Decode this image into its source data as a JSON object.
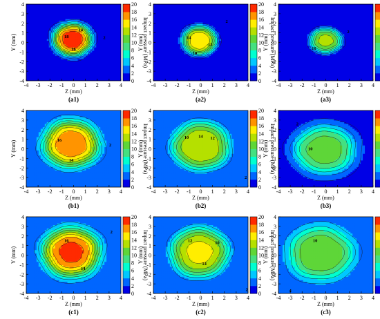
{
  "colors": {
    "scale": [
      "#0000e6",
      "#0066ff",
      "#00c8ff",
      "#00ffd0",
      "#44e080",
      "#5ed638",
      "#b5e000",
      "#ffee00",
      "#ff9400",
      "#ff2a00"
    ],
    "contour_line": "#1a1a1a"
  },
  "colorbar": {
    "title": "Impact pressure (MPa)",
    "ticks": [
      "0",
      "2",
      "4",
      "6",
      "8",
      "10",
      "12",
      "14",
      "16",
      "18",
      "20"
    ],
    "range": [
      0,
      20
    ]
  },
  "axes": {
    "xlabel": "Z (mm)",
    "ylabel": "Y (mm)",
    "xticks": [
      "-4",
      "-3",
      "-2",
      "-1",
      "0",
      "1",
      "2",
      "3",
      "4"
    ],
    "yticks": [
      "-4",
      "-3",
      "-2",
      "-1",
      "0",
      "1",
      "2",
      "3",
      "4"
    ]
  },
  "chart_data": [
    {
      "type": "heatmap",
      "caption": "(a1)",
      "peak": 19.5,
      "cz": -0.1,
      "cy": 0.3,
      "sz": 1.15,
      "sy": 1.2,
      "bg": 1.0,
      "contour_labels": [
        {
          "text": "18",
          "z": -0.6,
          "y": 0.6
        },
        {
          "text": "14",
          "z": 0.6,
          "y": 1.3
        },
        {
          "text": "16",
          "z": 0.0,
          "y": -0.7
        },
        {
          "text": "2",
          "z": 2.6,
          "y": 0.5
        }
      ]
    },
    {
      "type": "heatmap",
      "caption": "(a2)",
      "peak": 15.5,
      "cz": -0.1,
      "cy": 0.2,
      "sz": 1.05,
      "sy": 1.1,
      "bg": 0.2,
      "contour_labels": [
        {
          "text": "14",
          "z": -1.0,
          "y": 0.5
        },
        {
          "text": "12",
          "z": 0.8,
          "y": -0.2
        },
        {
          "text": "10",
          "z": -0.5,
          "y": -1.1
        },
        {
          "text": "2",
          "z": 2.2,
          "y": 2.2
        }
      ]
    },
    {
      "type": "heatmap",
      "caption": "(a3)",
      "peak": 12.5,
      "cz": 0.0,
      "cy": 0.2,
      "sz": 1.0,
      "sy": 0.95,
      "bg": 0.0,
      "contour_labels": [
        {
          "text": "10",
          "z": -1.0,
          "y": -0.6
        },
        {
          "text": "2",
          "z": 1.9,
          "y": 1.1
        }
      ]
    },
    {
      "type": "heatmap",
      "caption": "(b1)",
      "peak": 17.5,
      "cz": -0.2,
      "cy": 0.5,
      "sz": 1.65,
      "sy": 1.7,
      "bg": 3.0,
      "contour_labels": [
        {
          "text": "16",
          "z": -1.2,
          "y": 0.9
        },
        {
          "text": "14",
          "z": -0.2,
          "y": -1.2
        },
        {
          "text": "2",
          "z": 3.1,
          "y": 0.4
        }
      ]
    },
    {
      "type": "heatmap",
      "caption": "(b2)",
      "peak": 14.0,
      "cz": 0.0,
      "cy": 0.3,
      "sz": 1.75,
      "sy": 1.8,
      "bg": 2.0,
      "contour_labels": [
        {
          "text": "10",
          "z": -1.2,
          "y": 1.2
        },
        {
          "text": "14",
          "z": 0.0,
          "y": 1.3
        },
        {
          "text": "12",
          "z": 1.0,
          "y": 1.1
        },
        {
          "text": "2",
          "z": 3.8,
          "y": -3.0
        }
      ]
    },
    {
      "type": "heatmap",
      "caption": "(b3)",
      "peak": 11.0,
      "cz": -0.1,
      "cy": -0.1,
      "sz": 1.85,
      "sy": 1.8,
      "bg": 1.5,
      "contour_labels": [
        {
          "text": "10",
          "z": -1.3,
          "y": 0.0
        },
        {
          "text": "2",
          "z": -2.4,
          "y": 2.6
        }
      ]
    },
    {
      "type": "heatmap",
      "caption": "(c1)",
      "peak": 18.5,
      "cz": -0.2,
      "cy": 0.3,
      "sz": 1.7,
      "sy": 1.8,
      "bg": 3.0,
      "contour_labels": [
        {
          "text": "16",
          "z": -0.6,
          "y": 1.5
        },
        {
          "text": "14",
          "z": 0.8,
          "y": -1.4
        },
        {
          "text": "2",
          "z": 3.2,
          "y": 2.4
        }
      ]
    },
    {
      "type": "heatmap",
      "caption": "(c2)",
      "peak": 14.5,
      "cz": -0.1,
      "cy": 0.3,
      "sz": 1.75,
      "sy": 1.85,
      "bg": 2.0,
      "contour_labels": [
        {
          "text": "12",
          "z": -0.9,
          "y": 1.5
        },
        {
          "text": "10",
          "z": 1.4,
          "y": 1.3
        },
        {
          "text": "14",
          "z": 0.3,
          "y": -0.9
        },
        {
          "text": "2",
          "z": 3.9,
          "y": -3.6
        }
      ]
    },
    {
      "type": "heatmap",
      "caption": "(c3)",
      "peak": 11.8,
      "cz": -0.4,
      "cy": 0.2,
      "sz": 1.95,
      "sy": 1.95,
      "bg": 3.0,
      "contour_labels": [
        {
          "text": "10",
          "z": -0.9,
          "y": 1.5
        },
        {
          "text": "4",
          "z": -3.0,
          "y": -3.7
        }
      ]
    }
  ]
}
